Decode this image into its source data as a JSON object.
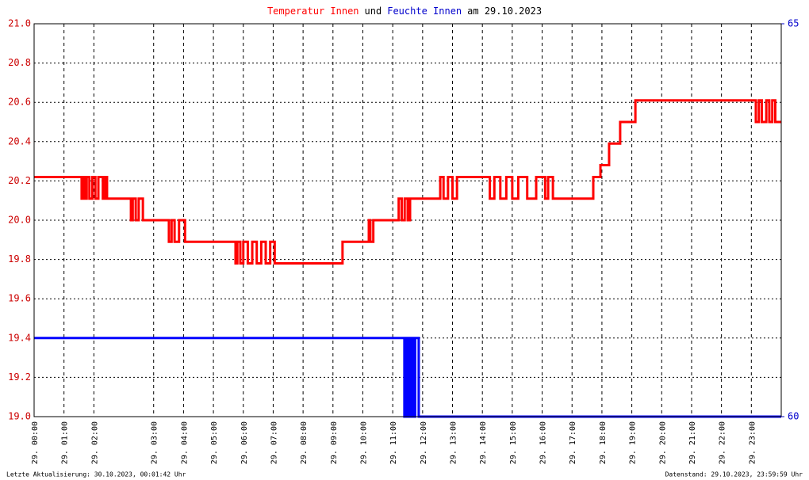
{
  "chart_data": {
    "type": "line",
    "title": [
      {
        "text": "Temperatur Innen",
        "color": "#ff0000"
      },
      {
        "text": "und",
        "color": "#000000"
      },
      {
        "text": "Feuchte Innen",
        "color": "#0000cc"
      },
      {
        "text": "am 29.10.2023",
        "color": "#000000"
      }
    ],
    "footer_left": "Letzte Aktualisierung: 30.10.2023, 00:01:42 Uhr",
    "footer_right": "Datenstand: 29.10.2023, 23:59:59 Uhr",
    "step": "post",
    "grid": true,
    "xlim": [
      0,
      25
    ],
    "xticks": [
      {
        "value": 0,
        "label": "29. 00:00"
      },
      {
        "value": 1,
        "label": "29. 01:00"
      },
      {
        "value": 2,
        "label": "29. 02:00"
      },
      {
        "value": 4,
        "label": "29. 03:00"
      },
      {
        "value": 5,
        "label": "29. 04:00"
      },
      {
        "value": 6,
        "label": "29. 05:00"
      },
      {
        "value": 7,
        "label": "29. 06:00"
      },
      {
        "value": 8,
        "label": "29. 07:00"
      },
      {
        "value": 9,
        "label": "29. 08:00"
      },
      {
        "value": 10,
        "label": "29. 09:00"
      },
      {
        "value": 11,
        "label": "29. 10:00"
      },
      {
        "value": 12,
        "label": "29. 11:00"
      },
      {
        "value": 13,
        "label": "29. 12:00"
      },
      {
        "value": 14,
        "label": "29. 13:00"
      },
      {
        "value": 15,
        "label": "29. 14:00"
      },
      {
        "value": 16,
        "label": "29. 15:00"
      },
      {
        "value": 17,
        "label": "29. 16:00"
      },
      {
        "value": 18,
        "label": "29. 17:00"
      },
      {
        "value": 19,
        "label": "29. 18:00"
      },
      {
        "value": 20,
        "label": "29. 19:00"
      },
      {
        "value": 21,
        "label": "29. 20:00"
      },
      {
        "value": 22,
        "label": "29. 21:00"
      },
      {
        "value": 23,
        "label": "29. 22:00"
      },
      {
        "value": 24,
        "label": "29. 23:00"
      }
    ],
    "ylim": [
      19,
      21
    ],
    "yticks": [
      {
        "value": 19,
        "label": "19.0"
      },
      19.2,
      19.4,
      19.6,
      19.8,
      {
        "value": 20,
        "label": "20.0"
      },
      20.2,
      20.4,
      20.6,
      20.8,
      {
        "value": 21,
        "label": "21.0"
      }
    ],
    "y2lim": [
      60,
      65
    ],
    "y2ticks": [
      60,
      65
    ],
    "y_color": "#cc0000",
    "y2_color": "#0000cc",
    "series": [
      {
        "name": "Temperatur Innen",
        "color": "#ff0000",
        "x": [
          0,
          1.59,
          1.65,
          1.7,
          1.76,
          1.85,
          1.95,
          2.05,
          2.15,
          2.3,
          2.38,
          2.44,
          3.24,
          3.3,
          3.4,
          3.5,
          3.64,
          4.51,
          4.6,
          4.7,
          4.85,
          5.05,
          6.74,
          6.8,
          6.9,
          7.0,
          7.15,
          7.3,
          7.45,
          7.6,
          7.75,
          7.9,
          8.05,
          10.32,
          11.2,
          11.25,
          11.35,
          12.2,
          12.3,
          12.4,
          12.5,
          12.58,
          13.59,
          13.7,
          13.85,
          14.0,
          14.15,
          15.25,
          15.4,
          15.6,
          15.8,
          16.0,
          16.2,
          16.5,
          16.8,
          17.1,
          17.2,
          17.36,
          18.71,
          18.95,
          19.24,
          19.61,
          20.12,
          24.15,
          24.25,
          24.35,
          24.5,
          24.6,
          24.7,
          24.8,
          25
        ],
        "values": [
          20.22,
          20.11,
          20.22,
          20.11,
          20.22,
          20.11,
          20.22,
          20.11,
          20.22,
          20.11,
          20.22,
          20.11,
          20.0,
          20.11,
          20.0,
          20.11,
          20.0,
          19.89,
          20.0,
          19.89,
          20.0,
          19.89,
          19.78,
          19.89,
          19.78,
          19.89,
          19.78,
          19.89,
          19.78,
          19.89,
          19.78,
          19.89,
          19.78,
          19.89,
          20.0,
          19.89,
          20.0,
          20.11,
          20.0,
          20.11,
          20.0,
          20.11,
          20.22,
          20.11,
          20.22,
          20.11,
          20.22,
          20.11,
          20.22,
          20.11,
          20.22,
          20.11,
          20.22,
          20.11,
          20.22,
          20.11,
          20.22,
          20.11,
          20.22,
          20.28,
          20.39,
          20.5,
          20.61,
          20.5,
          20.61,
          20.5,
          20.61,
          20.5,
          20.61,
          20.5,
          20.5
        ]
      },
      {
        "name": "Feuchte Innen",
        "color": "#0000ff",
        "axis": "y2",
        "x": [
          0,
          12.39,
          12.45,
          12.5,
          12.55,
          12.6,
          12.65,
          12.7,
          12.75,
          12.87,
          25
        ],
        "values": [
          61,
          60,
          61,
          60,
          61,
          60,
          61,
          60,
          61,
          60,
          60
        ]
      }
    ]
  }
}
